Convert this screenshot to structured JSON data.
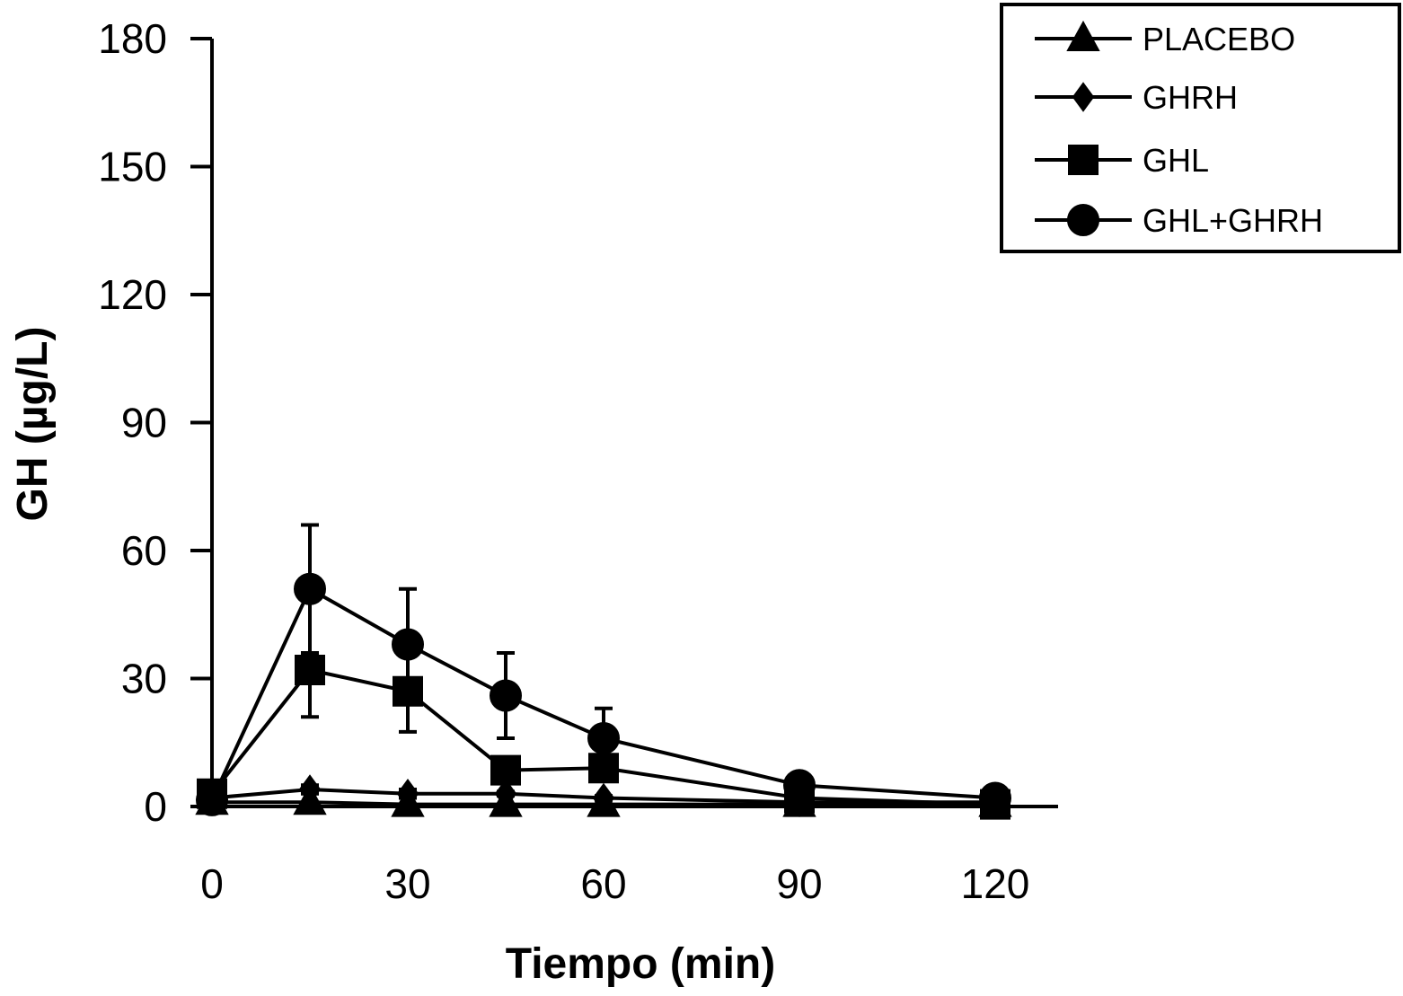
{
  "chart_data": {
    "type": "line",
    "title": "",
    "xlabel": "Tiempo (min)",
    "ylabel": "GH (µg/L)",
    "xlim": [
      0,
      130
    ],
    "ylim": [
      0,
      180
    ],
    "x_ticks": [
      "0",
      "30",
      "60",
      "90",
      "120"
    ],
    "y_ticks": [
      "0",
      "30",
      "60",
      "90",
      "120",
      "150",
      "180"
    ],
    "x": [
      0,
      15,
      30,
      45,
      60,
      90,
      120
    ],
    "legend_position": "top-right",
    "grid": false,
    "series": [
      {
        "name": "PLACEBO",
        "marker": "triangle",
        "values": [
          1,
          1,
          0.5,
          0.5,
          0.5,
          0.5,
          0.5
        ],
        "error": [
          0,
          0,
          2,
          0,
          0,
          0,
          0
        ]
      },
      {
        "name": "GHRH",
        "marker": "diamond",
        "values": [
          2,
          4,
          3,
          3,
          2,
          1,
          1
        ],
        "error": [
          0,
          1,
          1,
          0.5,
          0.5,
          0,
          0
        ]
      },
      {
        "name": "GHL",
        "marker": "square",
        "values": [
          3,
          32,
          27,
          8.5,
          9,
          2,
          0.5
        ],
        "error": [
          0,
          11,
          9.5,
          0,
          0,
          0,
          0
        ],
        "error_direction": "down"
      },
      {
        "name": "GHL+GHRH",
        "marker": "circle",
        "values": [
          1.5,
          51,
          38,
          26,
          16,
          5,
          2
        ],
        "error": [
          0,
          15,
          13,
          10,
          7,
          0,
          0
        ],
        "error_direction": "both"
      }
    ]
  }
}
